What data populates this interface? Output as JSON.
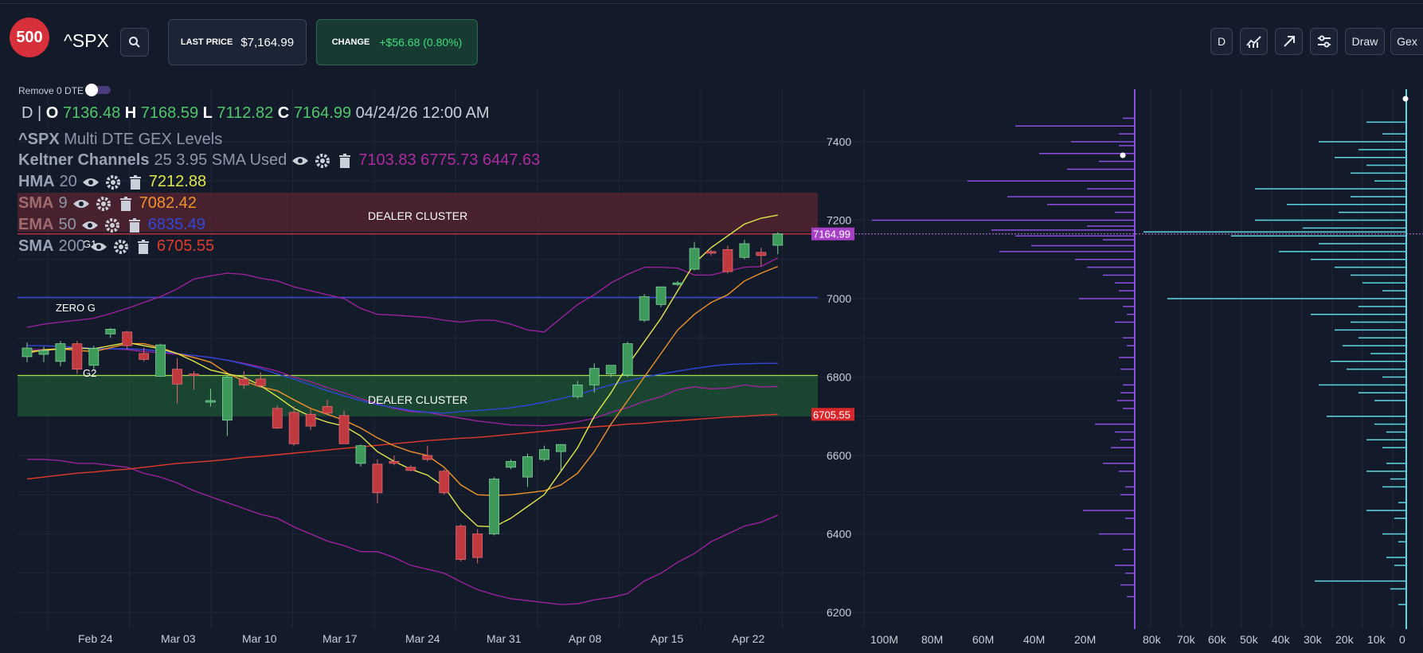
{
  "header": {
    "logo_text": "500",
    "ticker": "^SPX",
    "last_price_label": "LAST PRICE",
    "last_price_value": "$7,164.99",
    "change_label": "CHANGE",
    "change_value": "+$56.68 (0.80%)",
    "buttons": {
      "timeframe": "D",
      "draw": "Draw",
      "gex": "Gex"
    },
    "icons": [
      "search-icon",
      "chart-indicator-icon",
      "trend-arrow-icon",
      "settings-sliders-icon"
    ]
  },
  "toggle": {
    "label": "Remove 0 DTE",
    "on": true
  },
  "ohlc": {
    "interval": "D",
    "sep": "|",
    "o_label": "O",
    "o": "7136.48",
    "h_label": "H",
    "h": "7168.59",
    "l_label": "L",
    "l": "7112.82",
    "c_label": "C",
    "c": "7164.99",
    "datetime": "04/24/26 12:00 AM"
  },
  "indicators": {
    "gex_title_sym": "^SPX",
    "gex_title_rest": "Multi DTE GEX Levels",
    "keltner": {
      "name": "Keltner Channels",
      "params": "25 3.95 SMA Used",
      "values": "7103.83 6775.73 6447.63",
      "color": "#b02aa0"
    },
    "hma": {
      "name": "HMA",
      "params": "20",
      "value": "7212.88",
      "color": "#e2e84c"
    },
    "sma9": {
      "name": "SMA",
      "params": "9",
      "value": "7082.42",
      "color": "#f0932b"
    },
    "ema50": {
      "name": "EMA",
      "params": "50",
      "value": "6835.49",
      "color": "#2f47d8"
    },
    "sma200": {
      "name": "SMA",
      "params": "200",
      "value": "6705.55",
      "color": "#e23a2a"
    }
  },
  "annotations": {
    "dealer_cluster_top": "DEALER CLUSTER",
    "dealer_cluster_bottom": "DEALER CLUSTER",
    "zero_g": "ZERO G",
    "g1": "G1",
    "g2": "G2"
  },
  "price_tags": {
    "last": "7164.99",
    "sma200": "6705.55"
  },
  "colors": {
    "up": "#3d9a5b",
    "down": "#c0393f",
    "gex_call": "#8e4fe0",
    "gex_put": "#5fd7e2",
    "cluster_top": "#5a2530",
    "cluster_bottom": "#1d5434",
    "zero_g_line": "#3c49d8"
  },
  "chart_data": {
    "type": "candlestick",
    "y_axis": {
      "min": 6180,
      "max": 7470,
      "ticks": [
        7400,
        7200,
        7000,
        6800,
        6600,
        6400,
        6200
      ]
    },
    "x_ticks": [
      "Feb 24",
      "Mar 03",
      "Mar 10",
      "Mar 17",
      "Mar 24",
      "Mar 31",
      "Apr 08",
      "Apr 15",
      "Apr 22"
    ],
    "candles": [
      {
        "o": 6852,
        "h": 6888,
        "l": 6838,
        "c": 6874
      },
      {
        "o": 6858,
        "h": 6878,
        "l": 6838,
        "c": 6868
      },
      {
        "o": 6840,
        "h": 6892,
        "l": 6828,
        "c": 6885
      },
      {
        "o": 6885,
        "h": 6892,
        "l": 6808,
        "c": 6820
      },
      {
        "o": 6830,
        "h": 6880,
        "l": 6820,
        "c": 6873
      },
      {
        "o": 6910,
        "h": 6925,
        "l": 6900,
        "c": 6922
      },
      {
        "o": 6915,
        "h": 6918,
        "l": 6870,
        "c": 6880
      },
      {
        "o": 6860,
        "h": 6875,
        "l": 6840,
        "c": 6845
      },
      {
        "o": 6802,
        "h": 6885,
        "l": 6800,
        "c": 6882
      },
      {
        "o": 6820,
        "h": 6848,
        "l": 6733,
        "c": 6782
      },
      {
        "o": 6808,
        "h": 6815,
        "l": 6768,
        "c": 6805
      },
      {
        "o": 6738,
        "h": 6770,
        "l": 6725,
        "c": 6740
      },
      {
        "o": 6690,
        "h": 6805,
        "l": 6650,
        "c": 6800
      },
      {
        "o": 6795,
        "h": 6815,
        "l": 6770,
        "c": 6780
      },
      {
        "o": 6795,
        "h": 6812,
        "l": 6775,
        "c": 6778
      },
      {
        "o": 6720,
        "h": 6728,
        "l": 6668,
        "c": 6670
      },
      {
        "o": 6710,
        "h": 6725,
        "l": 6625,
        "c": 6630
      },
      {
        "o": 6705,
        "h": 6718,
        "l": 6665,
        "c": 6675
      },
      {
        "o": 6725,
        "h": 6742,
        "l": 6705,
        "c": 6708
      },
      {
        "o": 6702,
        "h": 6715,
        "l": 6630,
        "c": 6630
      },
      {
        "o": 6580,
        "h": 6628,
        "l": 6572,
        "c": 6625
      },
      {
        "o": 6578,
        "h": 6590,
        "l": 6478,
        "c": 6505
      },
      {
        "o": 6585,
        "h": 6600,
        "l": 6575,
        "c": 6580
      },
      {
        "o": 6570,
        "h": 6575,
        "l": 6560,
        "c": 6562
      },
      {
        "o": 6600,
        "h": 6625,
        "l": 6585,
        "c": 6590
      },
      {
        "o": 6560,
        "h": 6565,
        "l": 6500,
        "c": 6505
      },
      {
        "o": 6420,
        "h": 6425,
        "l": 6330,
        "c": 6335
      },
      {
        "o": 6400,
        "h": 6412,
        "l": 6325,
        "c": 6340
      },
      {
        "o": 6400,
        "h": 6545,
        "l": 6396,
        "c": 6540
      },
      {
        "o": 6570,
        "h": 6590,
        "l": 6565,
        "c": 6585
      },
      {
        "o": 6545,
        "h": 6605,
        "l": 6520,
        "c": 6597
      },
      {
        "o": 6590,
        "h": 6625,
        "l": 6585,
        "c": 6615
      },
      {
        "o": 6610,
        "h": 6628,
        "l": 6560,
        "c": 6628
      },
      {
        "o": 6750,
        "h": 6790,
        "l": 6745,
        "c": 6780
      },
      {
        "o": 6780,
        "h": 6835,
        "l": 6760,
        "c": 6822
      },
      {
        "o": 6808,
        "h": 6830,
        "l": 6800,
        "c": 6830
      },
      {
        "o": 6805,
        "h": 6890,
        "l": 6800,
        "c": 6885
      },
      {
        "o": 6945,
        "h": 7012,
        "l": 6940,
        "c": 7005
      },
      {
        "o": 6985,
        "h": 7030,
        "l": 6978,
        "c": 7030
      },
      {
        "o": 7038,
        "h": 7045,
        "l": 7032,
        "c": 7040
      },
      {
        "o": 7075,
        "h": 7145,
        "l": 7072,
        "c": 7128
      },
      {
        "o": 7120,
        "h": 7125,
        "l": 7110,
        "c": 7116
      },
      {
        "o": 7125,
        "h": 7135,
        "l": 7064,
        "c": 7069
      },
      {
        "o": 7105,
        "h": 7150,
        "l": 7100,
        "c": 7140
      },
      {
        "o": 7118,
        "h": 7130,
        "l": 7083,
        "c": 7110
      },
      {
        "o": 7136,
        "h": 7169,
        "l": 7113,
        "c": 7165
      }
    ],
    "levels": {
      "dealer_cluster_top": [
        7170,
        7270
      ],
      "zero_g": 7003,
      "dealer_cluster_bottom": [
        6700,
        6804
      ],
      "g1": 7165,
      "g2": 6855
    },
    "gex_x_ticks": [
      "100M",
      "80M",
      "60M",
      "40M",
      "20M"
    ],
    "oi_x_ticks": [
      "80k",
      "70k",
      "60k",
      "50k",
      "40k",
      "30k",
      "20k",
      "10k",
      "0"
    ]
  }
}
